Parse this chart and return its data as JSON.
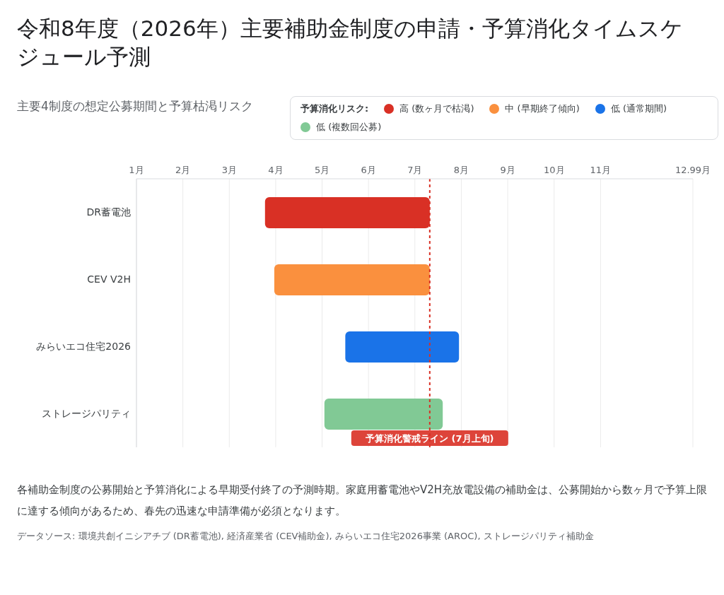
{
  "chart_data": {
    "type": "bar",
    "orientation": "horizontal",
    "title": "令和8年度（2026年）主要補助金制度の申請・予算消化タイムスケジュール予測",
    "subtitle": "主要4制度の想定公募期間と予算枯渇リスク",
    "categories": [
      "DR蓄電池",
      "CEV V2H",
      "みらいエコ住宅2026",
      "ストレージパリティ"
    ],
    "series": [
      {
        "name": "高 (数ヶ月で枯渇)",
        "color": "#d93025",
        "base": [
          3.77,
          null,
          null,
          null
        ],
        "values": [
          3.55,
          null,
          null,
          null
        ]
      },
      {
        "name": "中 (早期終了傾向)",
        "color": "#fa903e",
        "base": [
          null,
          3.97,
          null,
          null
        ],
        "values": [
          null,
          3.35,
          null,
          null
        ]
      },
      {
        "name": "低 (通常期間)",
        "color": "#1a73e8",
        "base": [
          null,
          null,
          5.5,
          null
        ],
        "values": [
          null,
          null,
          2.45,
          null
        ]
      },
      {
        "name": "低 (複数回公募)",
        "color": "#81c995",
        "base": [
          null,
          null,
          null,
          5.05
        ],
        "values": [
          null,
          null,
          null,
          2.55
        ]
      }
    ],
    "xlim": [
      1,
      12.99
    ],
    "xticks": [
      {
        "value": 1,
        "label": "1月"
      },
      {
        "value": 2,
        "label": "2月"
      },
      {
        "value": 3,
        "label": "3月"
      },
      {
        "value": 4,
        "label": "4月"
      },
      {
        "value": 5,
        "label": "5月"
      },
      {
        "value": 6,
        "label": "6月"
      },
      {
        "value": 7,
        "label": "7月"
      },
      {
        "value": 8,
        "label": "8月"
      },
      {
        "value": 9,
        "label": "9月"
      },
      {
        "value": 10,
        "label": "10月"
      },
      {
        "value": 11,
        "label": "11月"
      },
      {
        "value": 12.99,
        "label": "12.99月"
      }
    ],
    "ref_lines": [
      {
        "axis": "x",
        "value": 7.32,
        "label": "予算消化警戒ライン (7月上旬)",
        "color": "#d93025",
        "line_style": "dotted"
      }
    ],
    "legend": "top right",
    "legend_title": "予算消化リスク:",
    "grid": "x",
    "annotations": [
      "各補助金制度の公募開始と予算消化による早期受付終了の予測時期。家庭用蓄電池やV2H充放電設備の補助金は、公募開始から数ヶ月で予算上限に達する傾向があるため、春先の迅速な申請準備が必須となります。",
      "データソース: 環境共創イニシアチブ (DR蓄電池), 経済産業省 (CEV補助金), みらいエコ住宅2026事業 (AROC), ストレージパリティ補助金"
    ]
  }
}
